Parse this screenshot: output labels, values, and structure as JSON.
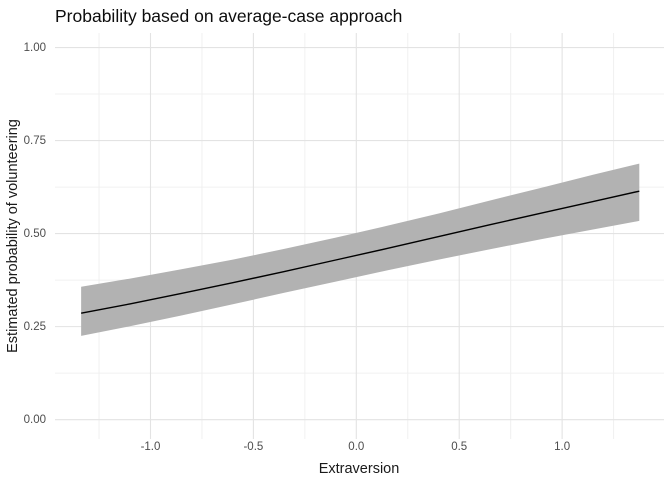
{
  "chart_data": {
    "type": "line",
    "title": "Probability based on average-case approach",
    "xlabel": "Extraversion",
    "ylabel": "Estimated probability of volunteering",
    "xlim": [
      -1.464,
      1.495
    ],
    "ylim": [
      -0.052,
      1.039
    ],
    "x_major_ticks": [
      -1.0,
      -0.5,
      0.0,
      0.5,
      1.0
    ],
    "x_tick_labels": [
      "-1.0",
      "-0.5",
      "0.0",
      "0.5",
      "1.0"
    ],
    "x_minor_ticks": [
      -1.25,
      -0.75,
      -0.25,
      0.25,
      0.75,
      1.25
    ],
    "y_major_ticks": [
      0.0,
      0.25,
      0.5,
      0.75,
      1.0
    ],
    "y_tick_labels": [
      "0.00",
      "0.25",
      "0.50",
      "0.75",
      "1.00"
    ],
    "y_minor_ticks": [
      0.125,
      0.375,
      0.625,
      0.875
    ],
    "grid": "on",
    "legend": "none",
    "series": [
      {
        "name": "estimated-probability",
        "x": [
          -1.337,
          -1.1,
          -0.85,
          -0.6,
          -0.35,
          -0.1,
          0.15,
          0.4,
          0.65,
          0.9,
          1.15,
          1.375
        ],
        "y": [
          0.286,
          0.311,
          0.339,
          0.368,
          0.398,
          0.429,
          0.46,
          0.492,
          0.524,
          0.555,
          0.586,
          0.614
        ],
        "ymin": [
          0.225,
          0.251,
          0.28,
          0.31,
          0.341,
          0.371,
          0.401,
          0.43,
          0.458,
          0.485,
          0.511,
          0.534
        ],
        "ymax": [
          0.357,
          0.379,
          0.404,
          0.43,
          0.459,
          0.489,
          0.521,
          0.554,
          0.589,
          0.623,
          0.658,
          0.688
        ]
      }
    ],
    "colors": {
      "line": "#000000",
      "ribbon": "#b2b2b2",
      "major_grid": "#e3e3e3",
      "minor_grid": "#f0f0f0",
      "background": "#ffffff",
      "tick_label": "#4d4d4d",
      "axis_title": "#1a1a1a",
      "plot_title": "#0d0d0d"
    }
  }
}
